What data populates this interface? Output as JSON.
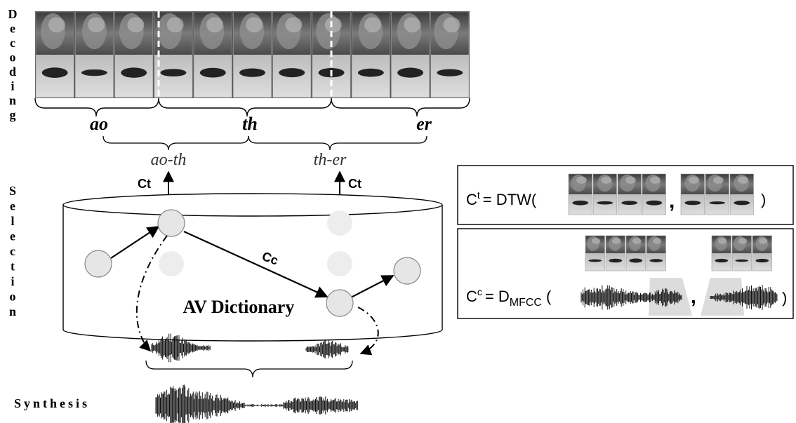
{
  "stages": {
    "decoding": "Decoding",
    "selection": "Selection",
    "synthesis": "Synthesis"
  },
  "phonemes": [
    "ao",
    "th",
    "er"
  ],
  "diphones": [
    "ao-th",
    "th-er"
  ],
  "costs": {
    "target_label_left": "Ct",
    "target_label_right": "Ct",
    "concat_label": "Cc"
  },
  "dictionary_label": "AV Dictionary",
  "formulas": {
    "target": {
      "symbol": "C",
      "sup": "t",
      "rhs": "= DTW(",
      "comma": ",",
      "close": ")"
    },
    "concat": {
      "symbol": "C",
      "sup": "c",
      "rhs": "= D",
      "sub": "MFCC",
      "open": "(",
      "comma": ",",
      "close": ")"
    }
  },
  "colors": {
    "stroke": "#000000",
    "node_fill": "#e6e6e6",
    "node_faded": "#ededed",
    "frame_dark": "#5c5c5c",
    "mouth_light": "#cfcfcf"
  }
}
